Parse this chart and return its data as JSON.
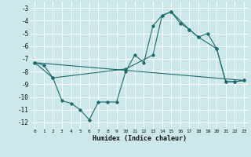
{
  "xlabel": "Humidex (Indice chaleur)",
  "bg_color": "#cce8ea",
  "grid_color": "#ffffff",
  "line_color": "#1e6b6b",
  "xlim": [
    -0.5,
    23.5
  ],
  "ylim": [
    -12.5,
    -2.5
  ],
  "yticks": [
    -3,
    -4,
    -5,
    -6,
    -7,
    -8,
    -9,
    -10,
    -11,
    -12
  ],
  "xticks": [
    0,
    1,
    2,
    3,
    4,
    5,
    6,
    7,
    8,
    9,
    10,
    11,
    12,
    13,
    14,
    15,
    16,
    17,
    18,
    19,
    20,
    21,
    22,
    23
  ],
  "line1_x": [
    0,
    1,
    2,
    3,
    4,
    5,
    6,
    7,
    8,
    9,
    10,
    11,
    12,
    13,
    14,
    15,
    16,
    17,
    18,
    19,
    20,
    21,
    22,
    23
  ],
  "line1_y": [
    -7.3,
    -7.5,
    -8.5,
    -10.3,
    -10.5,
    -11.0,
    -11.8,
    -10.4,
    -10.4,
    -10.4,
    -8.0,
    -6.7,
    -7.3,
    -4.4,
    -3.6,
    -3.3,
    -4.2,
    -4.7,
    -5.3,
    -5.0,
    -6.2,
    -8.8,
    -8.8,
    -8.7
  ],
  "line2_x": [
    0,
    2,
    10,
    13,
    14,
    15,
    17,
    18,
    20,
    21,
    22,
    23
  ],
  "line2_y": [
    -7.3,
    -8.5,
    -7.8,
    -6.7,
    -3.6,
    -3.3,
    -4.7,
    -5.3,
    -6.2,
    -8.8,
    -8.8,
    -8.7
  ],
  "line3_x": [
    0,
    23
  ],
  "line3_y": [
    -7.3,
    -8.7
  ]
}
